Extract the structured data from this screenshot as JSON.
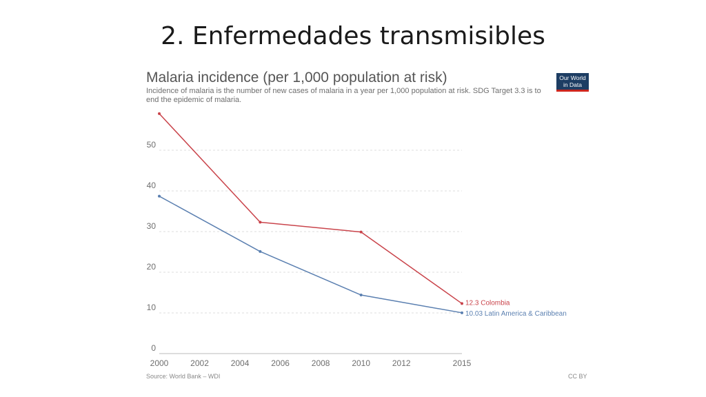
{
  "slide": {
    "title": "2. Enfermedades transmisibles"
  },
  "logo": {
    "line1": "Our World",
    "line2": "in Data"
  },
  "footer": {
    "source": "Source: World Bank – WDI",
    "license": "CC BY"
  },
  "chart_data": {
    "type": "line",
    "title": "Malaria incidence (per 1,000 population at risk)",
    "subtitle": "Incidence of malaria is the number of new cases of malaria in a year per 1,000 population at risk. SDG Target 3.3 is to end the epidemic of malaria.",
    "xlabel": "",
    "ylabel": "",
    "xlim": [
      2000,
      2015
    ],
    "ylim": [
      0,
      60
    ],
    "grid": true,
    "x_ticks": [
      2000,
      2002,
      2004,
      2006,
      2008,
      2010,
      2012,
      2015
    ],
    "y_ticks": [
      0,
      10,
      20,
      30,
      40,
      50
    ],
    "series": [
      {
        "name": "Colombia",
        "end_label": "12.3 Colombia",
        "color": "#c9434a",
        "x": [
          2000,
          2005,
          2010,
          2015
        ],
        "y": [
          59,
          32.3,
          29.9,
          12.3
        ]
      },
      {
        "name": "Latin America & Caribbean",
        "end_label": "10.03 Latin America & Caribbean",
        "color": "#5a7fb0",
        "x": [
          2000,
          2005,
          2010,
          2015
        ],
        "y": [
          38.7,
          25.1,
          14.4,
          10.03
        ]
      }
    ]
  }
}
